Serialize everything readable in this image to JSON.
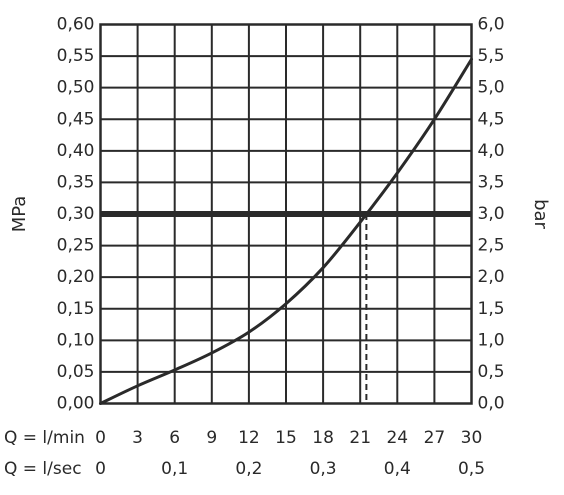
{
  "chart_data": {
    "type": "line",
    "x_unit_label": "Q = l/min",
    "x_ticks": [
      "0",
      "3",
      "6",
      "9",
      "12",
      "15",
      "18",
      "21",
      "24",
      "27",
      "30"
    ],
    "x_secondary_label": "Q = l/sec",
    "x_secondary_ticks": [
      "0",
      "0,1",
      "0,2",
      "0,3",
      "0,4",
      "0,5"
    ],
    "xlim": [
      0,
      30
    ],
    "y_left_label": "MPa",
    "y_left_ticks": [
      "0,00",
      "0,05",
      "0,10",
      "0,15",
      "0,20",
      "0,25",
      "0,30",
      "0,35",
      "0,40",
      "0,45",
      "0,50",
      "0,55",
      "0,60"
    ],
    "y_right_label": "bar",
    "y_right_ticks": [
      "0,0",
      "0,5",
      "1,0",
      "1,5",
      "2,0",
      "2,5",
      "3,0",
      "3,5",
      "4,0",
      "4,5",
      "5,0",
      "5,5",
      "6,0"
    ],
    "ylim": [
      0,
      0.6
    ],
    "grid": true,
    "series": [
      {
        "x": [
          0,
          3,
          6,
          9,
          12,
          15,
          18,
          21,
          24,
          27,
          30
        ],
        "y": [
          0,
          0.028,
          0.053,
          0.08,
          0.113,
          0.158,
          0.215,
          0.287,
          0.365,
          0.45,
          0.545
        ]
      }
    ],
    "reference_line": {
      "y": 0.3
    },
    "marker": {
      "x": 21.5,
      "y": 0.3
    }
  }
}
